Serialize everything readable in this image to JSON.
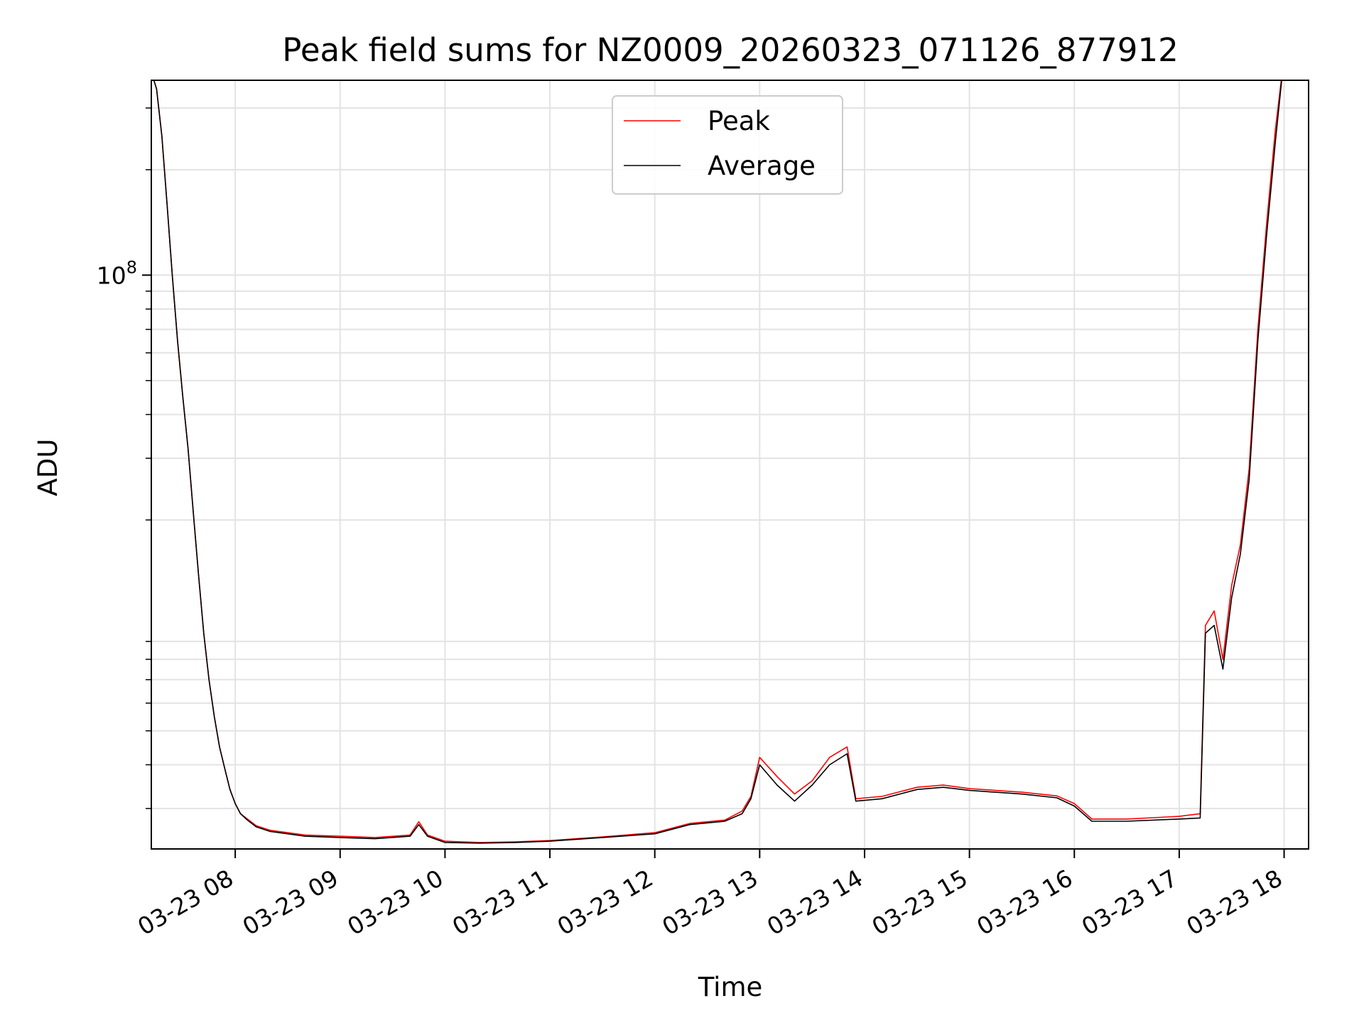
{
  "chart_data": {
    "type": "line",
    "title": "Peak field sums for NZ0009_20260323_071126_877912",
    "xlabel": "Time",
    "ylabel": "ADU",
    "y_scale": "log",
    "ylim": [
      2300000,
      360000000
    ],
    "xlim": [
      "03-23 07:12",
      "03-23 18:14"
    ],
    "grid": true,
    "legend_position": "top-center",
    "x_ticks": [
      "03-23 08",
      "03-23 09",
      "03-23 10",
      "03-23 11",
      "03-23 12",
      "03-23 13",
      "03-23 14",
      "03-23 15",
      "03-23 16",
      "03-23 17",
      "03-23 18"
    ],
    "y_tick_labels": [
      {
        "value": 100000000,
        "label": "10^8"
      }
    ],
    "y_minor_ticks": [
      3000000,
      4000000,
      5000000,
      6000000,
      7000000,
      8000000,
      9000000,
      20000000,
      30000000,
      40000000,
      50000000,
      60000000,
      70000000,
      80000000,
      90000000,
      200000000,
      300000000
    ],
    "series": [
      {
        "name": "Peak",
        "color": "#ff0000",
        "x": [
          "03-23 07:12",
          "03-23 07:15",
          "03-23 07:18",
          "03-23 07:21",
          "03-23 07:24",
          "03-23 07:27",
          "03-23 07:30",
          "03-23 07:33",
          "03-23 07:36",
          "03-23 07:39",
          "03-23 07:42",
          "03-23 07:45",
          "03-23 07:48",
          "03-23 07:51",
          "03-23 07:54",
          "03-23 07:57",
          "03-23 08:00",
          "03-23 08:03",
          "03-23 08:07",
          "03-23 08:12",
          "03-23 08:20",
          "03-23 08:30",
          "03-23 08:40",
          "03-23 09:00",
          "03-23 09:20",
          "03-23 09:40",
          "03-23 09:45",
          "03-23 09:50",
          "03-23 10:00",
          "03-23 10:20",
          "03-23 10:40",
          "03-23 11:00",
          "03-23 11:30",
          "03-23 12:00",
          "03-23 12:20",
          "03-23 12:40",
          "03-23 12:50",
          "03-23 12:55",
          "03-23 13:00",
          "03-23 13:10",
          "03-23 13:20",
          "03-23 13:30",
          "03-23 13:40",
          "03-23 13:50",
          "03-23 13:55",
          "03-23 14:10",
          "03-23 14:30",
          "03-23 14:45",
          "03-23 15:00",
          "03-23 15:30",
          "03-23 15:50",
          "03-23 16:00",
          "03-23 16:10",
          "03-23 16:30",
          "03-23 17:00",
          "03-23 17:12",
          "03-23 17:15",
          "03-23 17:20",
          "03-23 17:25",
          "03-23 17:30",
          "03-23 17:35",
          "03-23 17:40",
          "03-23 17:45",
          "03-23 17:50",
          "03-23 17:55",
          "03-23 18:00"
        ],
        "values": [
          380000000,
          340000000,
          250000000,
          160000000,
          100000000,
          65000000,
          45000000,
          32000000,
          21000000,
          14000000,
          9500000,
          7000000,
          5500000,
          4500000,
          3900000,
          3400000,
          3100000,
          2900000,
          2800000,
          2680000,
          2600000,
          2560000,
          2520000,
          2500000,
          2480000,
          2520000,
          2750000,
          2520000,
          2420000,
          2400000,
          2410000,
          2430000,
          2490000,
          2560000,
          2720000,
          2780000,
          2950000,
          3250000,
          4200000,
          3700000,
          3300000,
          3600000,
          4200000,
          4500000,
          3200000,
          3250000,
          3450000,
          3500000,
          3420000,
          3340000,
          3260000,
          3100000,
          2800000,
          2800000,
          2850000,
          2900000,
          10000000,
          11000000,
          8000000,
          13000000,
          17000000,
          28000000,
          70000000,
          140000000,
          260000000,
          420000000
        ]
      },
      {
        "name": "Average",
        "color": "#000000",
        "x": [
          "03-23 07:12",
          "03-23 07:15",
          "03-23 07:18",
          "03-23 07:21",
          "03-23 07:24",
          "03-23 07:27",
          "03-23 07:30",
          "03-23 07:33",
          "03-23 07:36",
          "03-23 07:39",
          "03-23 07:42",
          "03-23 07:45",
          "03-23 07:48",
          "03-23 07:51",
          "03-23 07:54",
          "03-23 07:57",
          "03-23 08:00",
          "03-23 08:03",
          "03-23 08:07",
          "03-23 08:12",
          "03-23 08:20",
          "03-23 08:30",
          "03-23 08:40",
          "03-23 09:00",
          "03-23 09:20",
          "03-23 09:40",
          "03-23 09:45",
          "03-23 09:50",
          "03-23 10:00",
          "03-23 10:20",
          "03-23 10:40",
          "03-23 11:00",
          "03-23 11:30",
          "03-23 12:00",
          "03-23 12:20",
          "03-23 12:40",
          "03-23 12:50",
          "03-23 12:55",
          "03-23 13:00",
          "03-23 13:10",
          "03-23 13:20",
          "03-23 13:30",
          "03-23 13:40",
          "03-23 13:50",
          "03-23 13:55",
          "03-23 14:10",
          "03-23 14:30",
          "03-23 14:45",
          "03-23 15:00",
          "03-23 15:30",
          "03-23 15:50",
          "03-23 16:00",
          "03-23 16:10",
          "03-23 16:30",
          "03-23 17:00",
          "03-23 17:12",
          "03-23 17:15",
          "03-23 17:20",
          "03-23 17:25",
          "03-23 17:30",
          "03-23 17:35",
          "03-23 17:40",
          "03-23 17:45",
          "03-23 17:50",
          "03-23 17:55",
          "03-23 18:00"
        ],
        "values": [
          380000000,
          340000000,
          250000000,
          160000000,
          100000000,
          65000000,
          45000000,
          32000000,
          21000000,
          14000000,
          9500000,
          7000000,
          5500000,
          4500000,
          3900000,
          3400000,
          3100000,
          2900000,
          2780000,
          2660000,
          2580000,
          2540000,
          2500000,
          2480000,
          2460000,
          2500000,
          2700000,
          2500000,
          2400000,
          2390000,
          2400000,
          2420000,
          2480000,
          2540000,
          2700000,
          2760000,
          2900000,
          3200000,
          4000000,
          3500000,
          3150000,
          3500000,
          4000000,
          4300000,
          3150000,
          3200000,
          3400000,
          3450000,
          3380000,
          3300000,
          3220000,
          3050000,
          2760000,
          2760000,
          2800000,
          2820000,
          9500000,
          10000000,
          7500000,
          12000000,
          16000000,
          26000000,
          65000000,
          130000000,
          240000000,
          420000000
        ]
      }
    ]
  }
}
